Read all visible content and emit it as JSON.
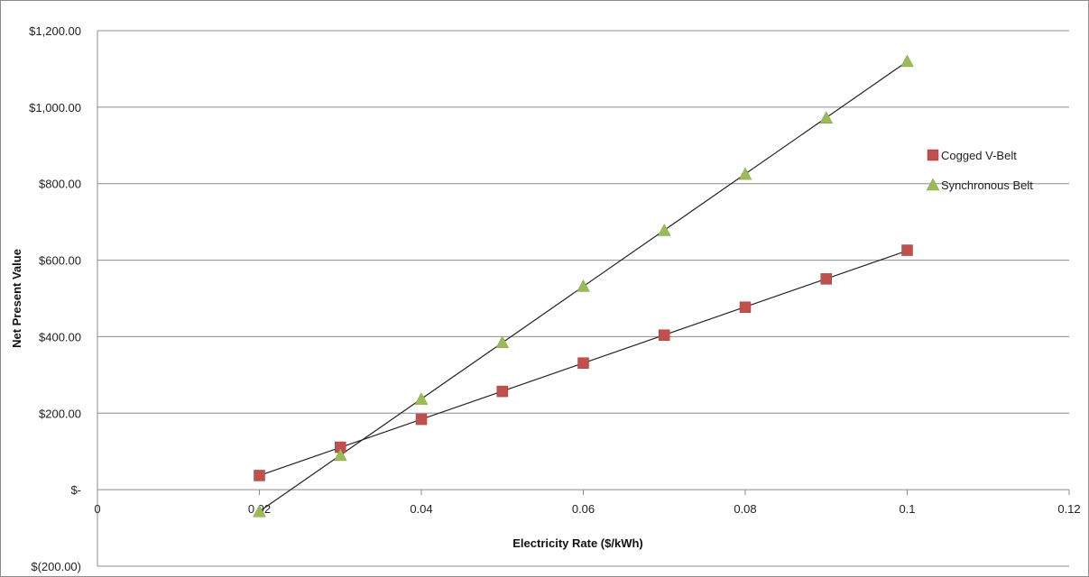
{
  "chart_data": {
    "type": "scatter",
    "title": "",
    "xlabel": "Electricity Rate ($/kWh)",
    "ylabel": "Net Present Value",
    "xlim": [
      0,
      0.12
    ],
    "ylim": [
      -200,
      1200
    ],
    "x_ticks": [
      {
        "value": 0,
        "label": "0"
      },
      {
        "value": 0.02,
        "label": "0.02"
      },
      {
        "value": 0.04,
        "label": "0.04"
      },
      {
        "value": 0.06,
        "label": "0.06"
      },
      {
        "value": 0.08,
        "label": "0.08"
      },
      {
        "value": 0.1,
        "label": "0.1"
      },
      {
        "value": 0.12,
        "label": "0.12"
      }
    ],
    "y_ticks": [
      {
        "value": -200,
        "label": "$(200.00)"
      },
      {
        "value": 0,
        "label": "$-"
      },
      {
        "value": 200,
        "label": "$200.00"
      },
      {
        "value": 400,
        "label": "$400.00"
      },
      {
        "value": 600,
        "label": "$600.00"
      },
      {
        "value": 800,
        "label": "$800.00"
      },
      {
        "value": 1000,
        "label": "$1,000.00"
      },
      {
        "value": 1200,
        "label": "$1,200.00"
      }
    ],
    "grid": "horizontal",
    "legend_position": "right",
    "trendlines": true,
    "series": [
      {
        "name": "Cogged V-Belt",
        "marker": "square",
        "color": "#c0504d",
        "x": [
          0.02,
          0.03,
          0.04,
          0.05,
          0.06,
          0.07,
          0.08,
          0.09,
          0.1
        ],
        "y": [
          37,
          111,
          184,
          257,
          331,
          404,
          477,
          551,
          626
        ]
      },
      {
        "name": "Synchronous Belt",
        "marker": "triangle",
        "color": "#9bbb59",
        "x": [
          0.02,
          0.03,
          0.04,
          0.05,
          0.06,
          0.07,
          0.08,
          0.09,
          0.1
        ],
        "y": [
          -57,
          90,
          237,
          385,
          532,
          678,
          825,
          972,
          1120
        ]
      }
    ]
  }
}
